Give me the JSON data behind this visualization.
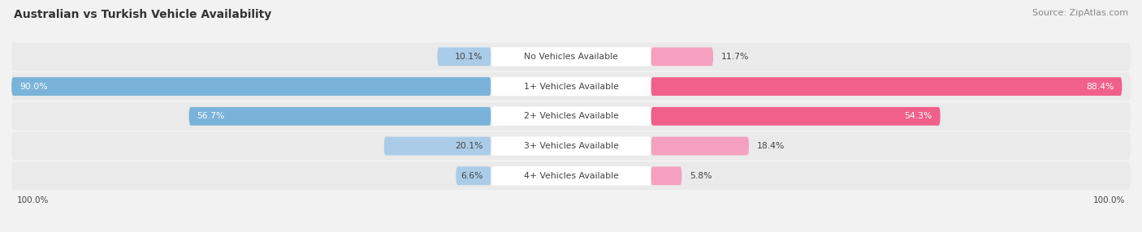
{
  "title": "Australian vs Turkish Vehicle Availability",
  "source": "Source: ZipAtlas.com",
  "categories": [
    "No Vehicles Available",
    "1+ Vehicles Available",
    "2+ Vehicles Available",
    "3+ Vehicles Available",
    "4+ Vehicles Available"
  ],
  "australian": [
    10.1,
    90.0,
    56.7,
    20.1,
    6.6
  ],
  "turkish": [
    11.7,
    88.4,
    54.3,
    18.4,
    5.8
  ],
  "aus_color_bar": "#7ab3d9",
  "aus_color_light": "#aacce8",
  "turk_color_bar": "#f0608a",
  "turk_color_light": "#f5a0be",
  "title_color": "#333333",
  "source_color": "#888888",
  "text_color": "#444444",
  "white_text_color": "#ffffff",
  "row_bg_color": "#eaeaea",
  "label_bg_color": "#ffffff",
  "figsize": [
    14.06,
    2.86
  ],
  "dpi": 100
}
